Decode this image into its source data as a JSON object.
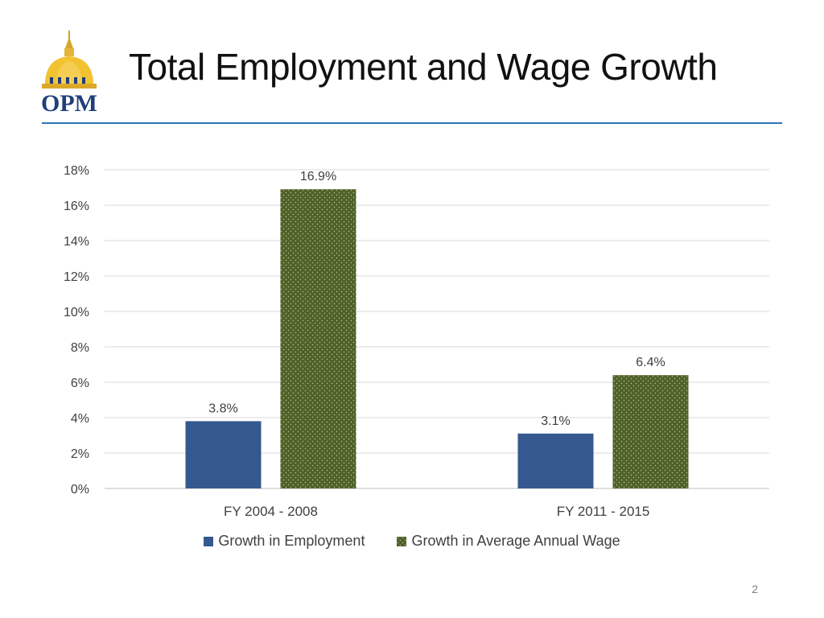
{
  "slide": {
    "title": "Total Employment and Wage Growth",
    "page_number": "2",
    "logo_text": "OPM"
  },
  "colors": {
    "rule": "#2e75b6",
    "employment": "#35598f",
    "wage": "#4f6228",
    "wage_dots": "#b7c49a",
    "grid": "#d9d9d9",
    "text": "#404040"
  },
  "chart_data": {
    "type": "bar",
    "title": "",
    "xlabel": "",
    "ylabel": "",
    "categories": [
      "FY 2004 - 2008",
      "FY 2011 - 2015"
    ],
    "series": [
      {
        "name": "Growth in Employment",
        "values": [
          3.8,
          3.1
        ],
        "labels": [
          "3.8%",
          "3.1%"
        ]
      },
      {
        "name": "Growth in Average Annual Wage",
        "values": [
          16.9,
          6.4
        ],
        "labels": [
          "16.9%",
          "6.4%"
        ]
      }
    ],
    "ylim": [
      0,
      18
    ],
    "yticks": [
      0,
      2,
      4,
      6,
      8,
      10,
      12,
      14,
      16,
      18
    ],
    "ytick_labels": [
      "0%",
      "2%",
      "4%",
      "6%",
      "8%",
      "10%",
      "12%",
      "14%",
      "16%",
      "18%"
    ],
    "grid": true,
    "legend": "bottom"
  }
}
